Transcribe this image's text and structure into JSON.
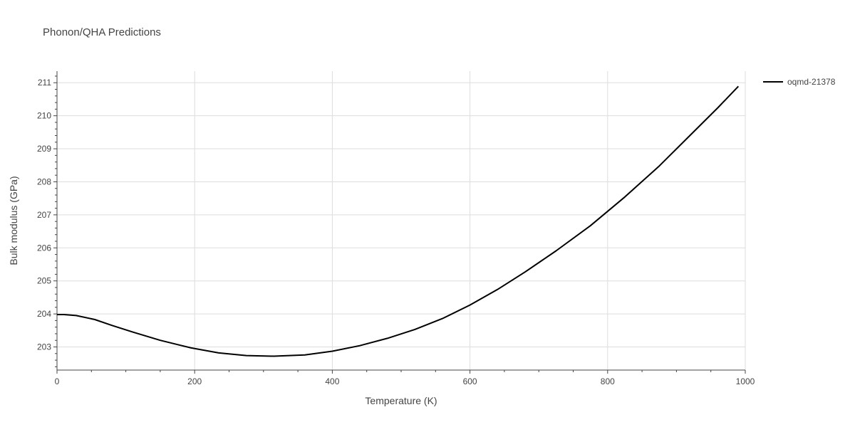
{
  "chart_data": {
    "type": "line",
    "title": "Phonon/QHA Predictions",
    "xlabel": "Temperature (K)",
    "ylabel": "Bulk modulus (GPa)",
    "xlim": [
      0,
      1000
    ],
    "ylim": [
      202.3,
      211.35
    ],
    "xticks": [
      0,
      200,
      400,
      600,
      800,
      1000
    ],
    "yticks": [
      203,
      204,
      205,
      206,
      207,
      208,
      209,
      210,
      211
    ],
    "grid": true,
    "legend": "top-right outside",
    "series": [
      {
        "name": "oqmd-21378",
        "color": "#000000",
        "x": [
          0,
          10,
          28,
          55,
          80,
          110,
          150,
          195,
          235,
          275,
          315,
          360,
          400,
          440,
          480,
          520,
          560,
          600,
          640,
          680,
          725,
          775,
          825,
          875,
          920,
          960,
          990
        ],
        "y": [
          203.98,
          203.98,
          203.95,
          203.83,
          203.65,
          203.45,
          203.2,
          202.97,
          202.82,
          202.74,
          202.72,
          202.76,
          202.87,
          203.04,
          203.26,
          203.53,
          203.86,
          204.27,
          204.74,
          205.27,
          205.91,
          206.67,
          207.54,
          208.48,
          209.41,
          210.24,
          210.89
        ]
      }
    ]
  }
}
